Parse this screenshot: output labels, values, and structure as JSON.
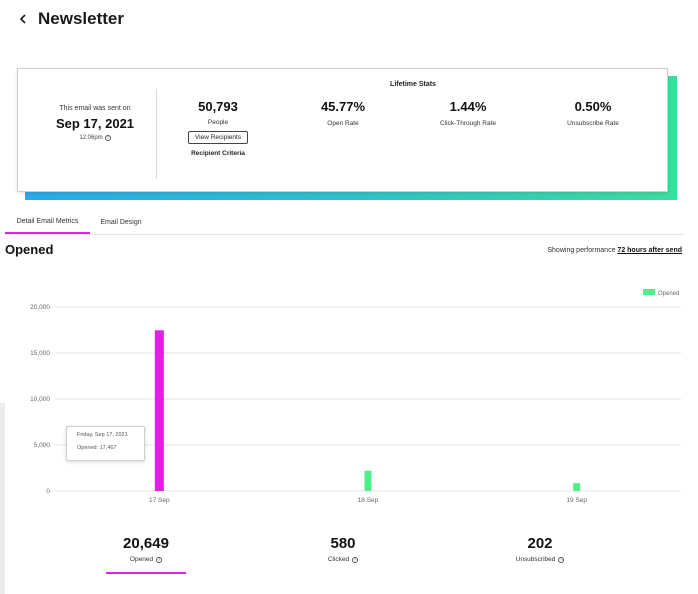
{
  "header": {
    "title": "Newsletter",
    "back_icon": "chevron-left-icon"
  },
  "stats_card": {
    "sent_caption": "This email was sent on",
    "sent_date": "Sep 17, 2021",
    "sent_time": "12:06pm",
    "lifetime_title": "Lifetime Stats",
    "people": {
      "value": "50,793",
      "label": "People"
    },
    "view_recipients_label": "View Recipients",
    "recipient_criteria_label": "Recipient Criteria",
    "open_rate": {
      "value": "45.77%",
      "label": "Open Rate"
    },
    "click_through_rate": {
      "value": "1.44%",
      "label": "Click-Through Rate"
    },
    "unsubscribe_rate": {
      "value": "0.50%",
      "label": "Unsubscribe Rate"
    },
    "accent_gradient": [
      "#2aa9e6",
      "#3cdc9c"
    ]
  },
  "tabs": [
    {
      "label": "Detail Email Metrics",
      "active": true
    },
    {
      "label": "Email Design",
      "active": false
    }
  ],
  "section": {
    "title": "Opened",
    "performance_prefix": "Showing performance",
    "performance_link": "72 hours after send"
  },
  "chart_data": {
    "type": "bar",
    "categories": [
      "17 Sep",
      "18 Sep",
      "19 Sep"
    ],
    "series": [
      {
        "name": "Opened",
        "values": [
          17467,
          2200,
          850
        ],
        "colors": [
          "#e31ee6",
          "#4ef08a",
          "#4ef08a"
        ]
      }
    ],
    "ylim": [
      0,
      20000
    ],
    "yticks": [
      "0",
      "5,000",
      "10,000",
      "15,000",
      "20,000"
    ],
    "ytick_values": [
      0,
      5000,
      10000,
      15000,
      20000
    ],
    "grid": true,
    "legend": "top-right",
    "legend_color": "#4ef08a",
    "tooltip": {
      "date": "Friday, Sep 17, 2021",
      "value": "Opened: 17,467"
    }
  },
  "summary": [
    {
      "value": "20,649",
      "label": "Opened",
      "active": true
    },
    {
      "value": "580",
      "label": "Clicked",
      "active": false
    },
    {
      "value": "202",
      "label": "Unsubscribed",
      "active": false
    }
  ],
  "colors": {
    "active_accent": "#e31ee6"
  }
}
